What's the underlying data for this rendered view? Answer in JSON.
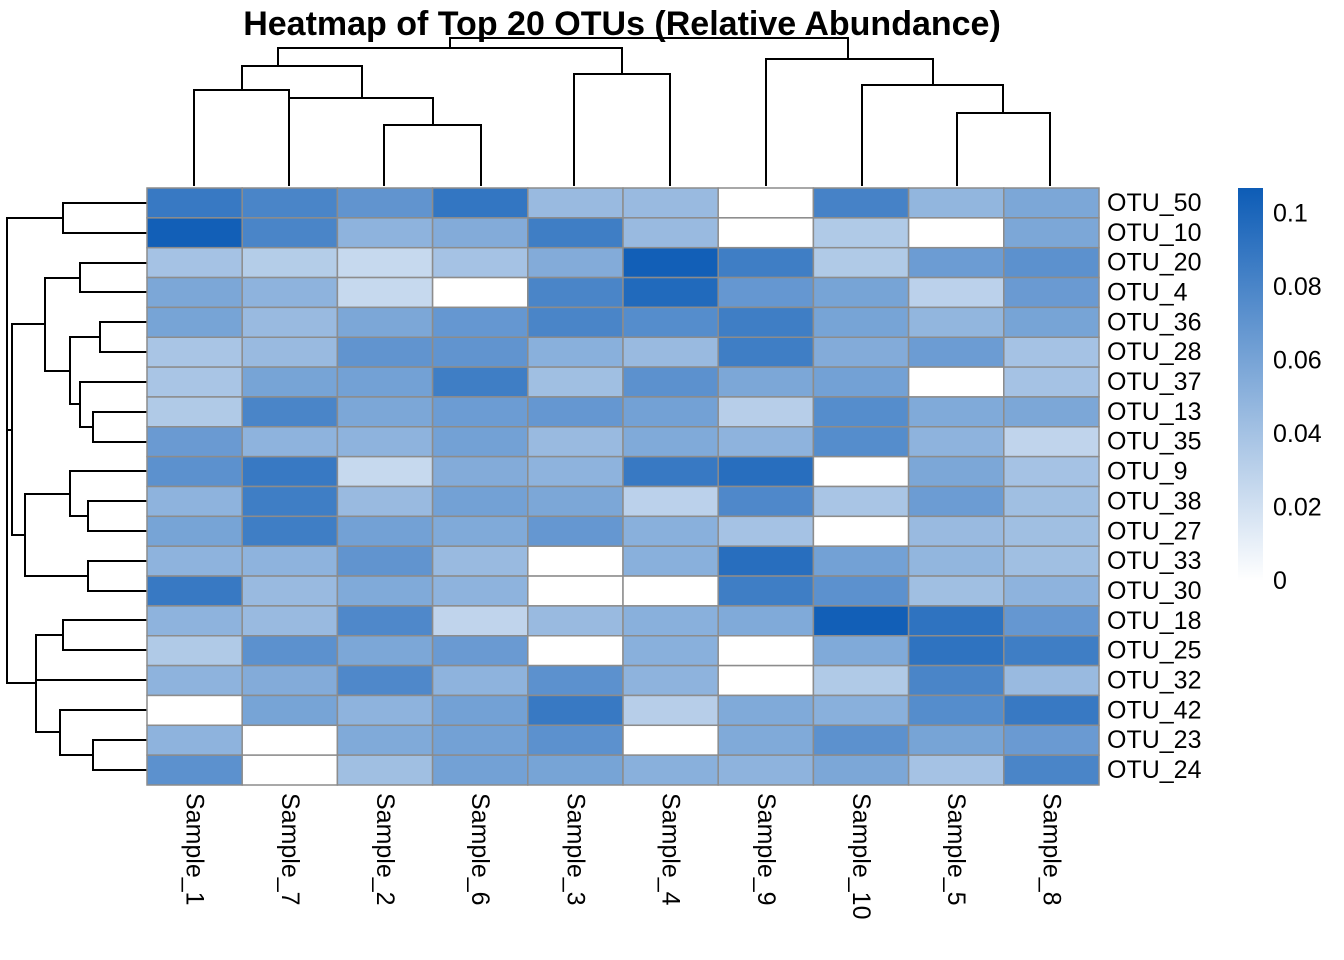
{
  "chart_data": {
    "type": "heatmap",
    "title": "Heatmap of Top 20 OTUs (Relative Abundance)",
    "columns": [
      "Sample_1",
      "Sample_7",
      "Sample_2",
      "Sample_6",
      "Sample_3",
      "Sample_4",
      "Sample_9",
      "Sample_10",
      "Sample_5",
      "Sample_8"
    ],
    "rows": [
      "OTU_50",
      "OTU_10",
      "OTU_20",
      "OTU_4",
      "OTU_36",
      "OTU_28",
      "OTU_37",
      "OTU_13",
      "OTU_35",
      "OTU_9",
      "OTU_38",
      "OTU_27",
      "OTU_33",
      "OTU_30",
      "OTU_18",
      "OTU_25",
      "OTU_32",
      "OTU_42",
      "OTU_23",
      "OTU_24"
    ],
    "values": [
      [
        0.088,
        0.08,
        0.07,
        0.09,
        0.045,
        0.045,
        0.0,
        0.082,
        0.048,
        0.058
      ],
      [
        0.105,
        0.08,
        0.05,
        0.055,
        0.085,
        0.045,
        0.0,
        0.035,
        0.0,
        0.058
      ],
      [
        0.04,
        0.033,
        0.025,
        0.04,
        0.055,
        0.105,
        0.085,
        0.035,
        0.065,
        0.072
      ],
      [
        0.058,
        0.05,
        0.025,
        0.0,
        0.08,
        0.098,
        0.068,
        0.06,
        0.03,
        0.066
      ],
      [
        0.06,
        0.045,
        0.058,
        0.068,
        0.08,
        0.075,
        0.085,
        0.06,
        0.048,
        0.06
      ],
      [
        0.038,
        0.045,
        0.07,
        0.07,
        0.052,
        0.045,
        0.085,
        0.055,
        0.065,
        0.04
      ],
      [
        0.038,
        0.06,
        0.062,
        0.085,
        0.042,
        0.072,
        0.058,
        0.062,
        0.0,
        0.04
      ],
      [
        0.035,
        0.08,
        0.058,
        0.065,
        0.068,
        0.062,
        0.032,
        0.075,
        0.056,
        0.058
      ],
      [
        0.066,
        0.05,
        0.05,
        0.062,
        0.045,
        0.056,
        0.05,
        0.075,
        0.05,
        0.028
      ],
      [
        0.072,
        0.088,
        0.025,
        0.055,
        0.05,
        0.088,
        0.095,
        0.0,
        0.058,
        0.04
      ],
      [
        0.05,
        0.085,
        0.045,
        0.062,
        0.058,
        0.03,
        0.078,
        0.038,
        0.065,
        0.042
      ],
      [
        0.06,
        0.085,
        0.062,
        0.056,
        0.068,
        0.052,
        0.04,
        0.0,
        0.045,
        0.042
      ],
      [
        0.05,
        0.05,
        0.07,
        0.045,
        0.0,
        0.052,
        0.095,
        0.062,
        0.048,
        0.042
      ],
      [
        0.088,
        0.045,
        0.056,
        0.05,
        0.0,
        0.0,
        0.085,
        0.072,
        0.042,
        0.05
      ],
      [
        0.05,
        0.045,
        0.078,
        0.028,
        0.045,
        0.052,
        0.056,
        0.105,
        0.092,
        0.068
      ],
      [
        0.035,
        0.072,
        0.058,
        0.066,
        0.0,
        0.052,
        0.0,
        0.056,
        0.092,
        0.085
      ],
      [
        0.05,
        0.055,
        0.078,
        0.05,
        0.072,
        0.05,
        0.0,
        0.035,
        0.08,
        0.045
      ],
      [
        0.0,
        0.06,
        0.05,
        0.062,
        0.088,
        0.032,
        0.056,
        0.052,
        0.075,
        0.088
      ],
      [
        0.05,
        0.0,
        0.056,
        0.062,
        0.072,
        0.0,
        0.056,
        0.072,
        0.06,
        0.066
      ],
      [
        0.072,
        0.0,
        0.042,
        0.062,
        0.06,
        0.052,
        0.05,
        0.058,
        0.04,
        0.08
      ]
    ],
    "color_scale": {
      "min": 0,
      "max": 0.107,
      "low_color": "#ffffff",
      "high_color": "#0d5cb6",
      "ticks": [
        {
          "value": 0,
          "label": "0"
        },
        {
          "value": 0.02,
          "label": "0.02"
        },
        {
          "value": 0.04,
          "label": "0.04"
        },
        {
          "value": 0.06,
          "label": "0.06"
        },
        {
          "value": 0.08,
          "label": "0.08"
        },
        {
          "value": 0.1,
          "label": "0.1"
        }
      ]
    },
    "legend_position": "right"
  }
}
